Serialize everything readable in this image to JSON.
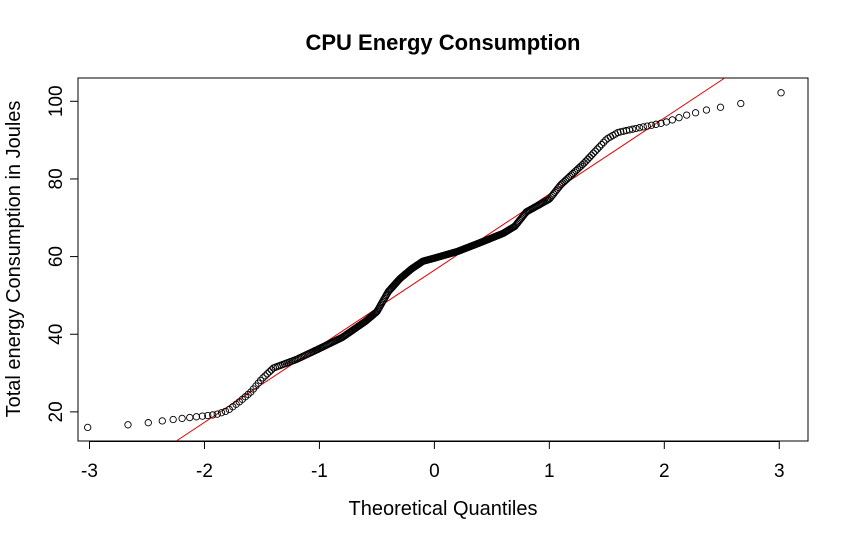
{
  "chart_data": {
    "type": "scatter",
    "title": "CPU Energy Consumption",
    "xlabel": "Theoretical Quantiles",
    "ylabel": "Total energy Consumption in Joules",
    "xlim": [
      -3.1,
      3.25
    ],
    "ylim": [
      12.5,
      106
    ],
    "xticks": [
      -3,
      -2,
      -1,
      0,
      1,
      2,
      3
    ],
    "yticks": [
      20,
      40,
      60,
      80,
      100
    ],
    "grid": false,
    "legend": "none",
    "point_color": "#000000",
    "reference_line": {
      "color": "#e00000",
      "slope": 19.6,
      "intercept": 56.5
    },
    "anchors": [
      [
        -3.0,
        16.0
      ],
      [
        -2.6,
        16.8
      ],
      [
        -2.2,
        18.3
      ],
      [
        -1.9,
        19.3
      ],
      [
        -1.8,
        20.3
      ],
      [
        -1.7,
        22.5
      ],
      [
        -1.6,
        25.0
      ],
      [
        -1.5,
        28.5
      ],
      [
        -1.4,
        31.3
      ],
      [
        -1.2,
        33.5
      ],
      [
        -1.0,
        36.3
      ],
      [
        -0.8,
        39.2
      ],
      [
        -0.6,
        43.3
      ],
      [
        -0.5,
        45.8
      ],
      [
        -0.4,
        51.0
      ],
      [
        -0.3,
        54.3
      ],
      [
        -0.2,
        56.8
      ],
      [
        -0.1,
        58.8
      ],
      [
        0.0,
        59.6
      ],
      [
        0.2,
        61.3
      ],
      [
        0.4,
        63.6
      ],
      [
        0.6,
        66.0
      ],
      [
        0.7,
        67.8
      ],
      [
        0.8,
        71.5
      ],
      [
        1.0,
        74.8
      ],
      [
        1.1,
        78.5
      ],
      [
        1.3,
        84.0
      ],
      [
        1.5,
        90.3
      ],
      [
        1.6,
        92.0
      ],
      [
        1.8,
        93.3
      ],
      [
        2.0,
        94.5
      ],
      [
        2.2,
        96.5
      ],
      [
        2.4,
        98.0
      ],
      [
        2.65,
        99.3
      ],
      [
        3.0,
        102.2
      ]
    ],
    "n_points": 390
  }
}
